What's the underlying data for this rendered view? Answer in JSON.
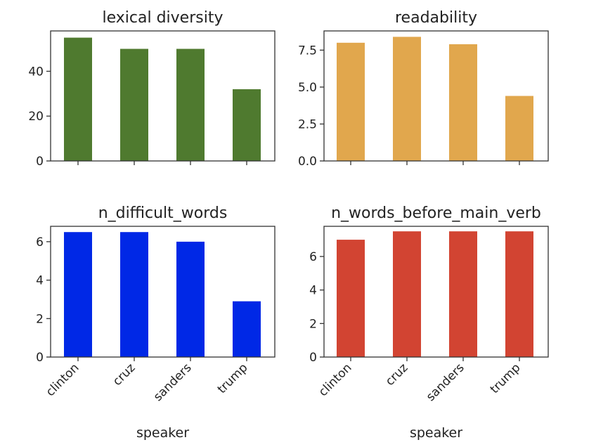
{
  "chart_data": [
    {
      "type": "bar",
      "title": "lexical diversity",
      "categories": [
        "clinton",
        "cruz",
        "sanders",
        "trump"
      ],
      "values": [
        55,
        50,
        50,
        32
      ],
      "ylim": [
        0,
        58
      ],
      "yticks": [
        "0",
        "20",
        "40"
      ],
      "xlabel": "",
      "color": "#4f7a2f",
      "show_xticklabels": false
    },
    {
      "type": "bar",
      "title": "readability",
      "categories": [
        "clinton",
        "cruz",
        "sanders",
        "trump"
      ],
      "values": [
        8.0,
        8.4,
        7.9,
        4.4
      ],
      "ylim": [
        0,
        8.8
      ],
      "yticks": [
        "0.0",
        "2.5",
        "5.0",
        "7.5"
      ],
      "xlabel": "",
      "color": "#e1a74d",
      "show_xticklabels": false
    },
    {
      "type": "bar",
      "title": "n_difficult_words",
      "categories": [
        "clinton",
        "cruz",
        "sanders",
        "trump"
      ],
      "values": [
        6.5,
        6.5,
        6.0,
        2.9
      ],
      "ylim": [
        0,
        6.8
      ],
      "yticks": [
        "0",
        "2",
        "4",
        "6"
      ],
      "xlabel": "speaker",
      "color": "#0028e6",
      "show_xticklabels": true
    },
    {
      "type": "bar",
      "title": "n_words_before_main_verb",
      "categories": [
        "clinton",
        "cruz",
        "sanders",
        "trump"
      ],
      "values": [
        7.0,
        7.5,
        7.5,
        7.5
      ],
      "ylim": [
        0,
        7.8
      ],
      "yticks": [
        "0",
        "2",
        "4",
        "6"
      ],
      "xlabel": "speaker",
      "color": "#d24432",
      "show_xticklabels": true
    }
  ]
}
